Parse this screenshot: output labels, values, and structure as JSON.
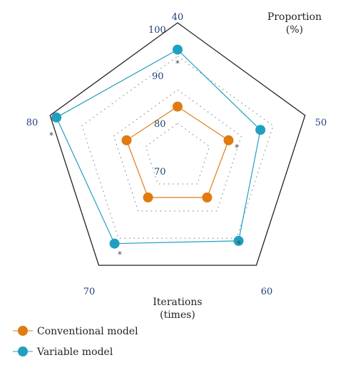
{
  "chart_data": {
    "type": "radar",
    "categories": [
      "40",
      "50",
      "60",
      "70",
      "80"
    ],
    "ring_values": [
      70,
      80,
      90,
      100
    ],
    "ring_labels": [
      "70",
      "80",
      "90",
      "100"
    ],
    "rlim": [
      60,
      100
    ],
    "axis_title_top": {
      "line1": "Proportion",
      "line2": "(%)"
    },
    "axis_title_bottom": {
      "line1": "Iterations",
      "line2": "(times)"
    },
    "series": [
      {
        "name": "Conventional model",
        "color": "#e07b12",
        "values": [
          75,
          76,
          75,
          75,
          76
        ]
      },
      {
        "name": "Variable model",
        "color": "#1fa0c0",
        "values": [
          92,
          86,
          91,
          92,
          98
        ]
      }
    ],
    "significance_marker": "*",
    "grid": "dotted",
    "legend_position": "bottom-left"
  }
}
